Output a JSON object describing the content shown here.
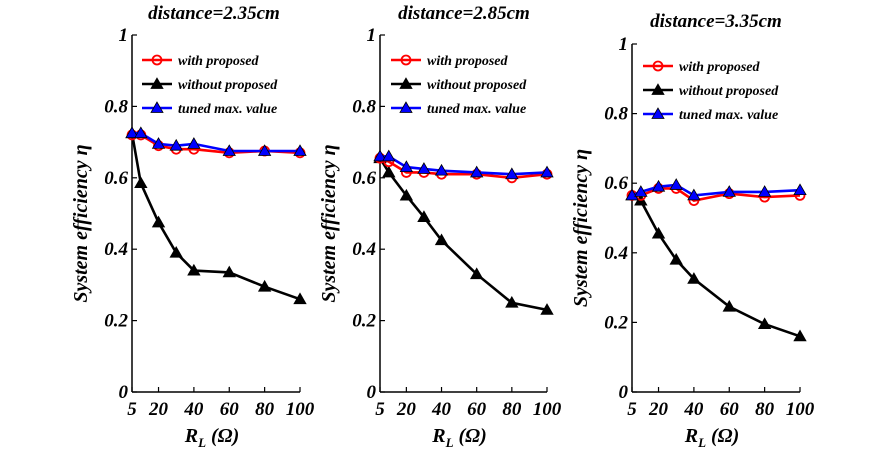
{
  "chart_data": [
    {
      "type": "line",
      "title": "distance=2.35cm",
      "xlabel_main": "R",
      "xlabel_sub": "L",
      "xlabel_unit": " (Ω)",
      "ylabel": "System efficiency η",
      "x": [
        5,
        10,
        20,
        30,
        40,
        60,
        80,
        100
      ],
      "xticks": [
        5,
        20,
        40,
        60,
        80,
        100
      ],
      "yticks": [
        "0",
        "0.2",
        "0.4",
        "0.6",
        "0.8",
        "1"
      ],
      "xlim": [
        5,
        100
      ],
      "ylim": [
        0,
        1
      ],
      "legend_position": "top-right",
      "series": [
        {
          "name": "with proposed",
          "color": "#ff0000",
          "marker": "circle",
          "values": [
            0.72,
            0.72,
            0.69,
            0.68,
            0.68,
            0.67,
            0.675,
            0.67
          ]
        },
        {
          "name": "without proposed",
          "color": "#000000",
          "marker": "triangle",
          "values": [
            0.725,
            0.585,
            0.475,
            0.39,
            0.34,
            0.335,
            0.295,
            0.26
          ]
        },
        {
          "name": "tuned max. value",
          "color": "#0000ff",
          "marker": "triangle",
          "values": [
            0.725,
            0.725,
            0.695,
            0.69,
            0.695,
            0.675,
            0.675,
            0.675
          ]
        }
      ]
    },
    {
      "type": "line",
      "title": "distance=2.85cm",
      "xlabel_main": "R",
      "xlabel_sub": "L",
      "xlabel_unit": " (Ω)",
      "ylabel": "System efficiency η",
      "x": [
        5,
        10,
        20,
        30,
        40,
        60,
        80,
        100
      ],
      "xticks": [
        5,
        20,
        40,
        60,
        80,
        100
      ],
      "yticks": [
        "0",
        "0.2",
        "0.4",
        "0.6",
        "0.8",
        "1"
      ],
      "xlim": [
        5,
        100
      ],
      "ylim": [
        0,
        1
      ],
      "legend_position": "top-right",
      "series": [
        {
          "name": "with proposed",
          "color": "#ff0000",
          "marker": "circle",
          "values": [
            0.655,
            0.645,
            0.615,
            0.615,
            0.61,
            0.61,
            0.6,
            0.61
          ]
        },
        {
          "name": "without proposed",
          "color": "#000000",
          "marker": "triangle",
          "values": [
            0.655,
            0.615,
            0.55,
            0.49,
            0.425,
            0.33,
            0.25,
            0.23
          ]
        },
        {
          "name": "tuned max. value",
          "color": "#0000ff",
          "marker": "triangle",
          "values": [
            0.66,
            0.66,
            0.63,
            0.625,
            0.62,
            0.615,
            0.61,
            0.615
          ]
        }
      ]
    },
    {
      "type": "line",
      "title": "distance=3.35cm",
      "xlabel_main": "R",
      "xlabel_sub": "L",
      "xlabel_unit": " (Ω)",
      "ylabel": "System efficiency η",
      "x": [
        5,
        10,
        20,
        30,
        40,
        60,
        80,
        100
      ],
      "xticks": [
        5,
        20,
        40,
        60,
        80,
        100
      ],
      "yticks": [
        "0",
        "0.2",
        "0.4",
        "0.6",
        "0.8",
        "1"
      ],
      "xlim": [
        5,
        100
      ],
      "ylim": [
        0,
        1
      ],
      "legend_position": "top-right",
      "series": [
        {
          "name": "with proposed",
          "color": "#ff0000",
          "marker": "circle",
          "values": [
            0.565,
            0.565,
            0.585,
            0.585,
            0.55,
            0.57,
            0.56,
            0.565
          ]
        },
        {
          "name": "without proposed",
          "color": "#000000",
          "marker": "triangle",
          "values": [
            0.565,
            0.55,
            0.455,
            0.38,
            0.325,
            0.245,
            0.195,
            0.16
          ]
        },
        {
          "name": "tuned max. value",
          "color": "#0000ff",
          "marker": "triangle",
          "values": [
            0.565,
            0.575,
            0.59,
            0.595,
            0.565,
            0.575,
            0.575,
            0.58
          ]
        }
      ]
    }
  ]
}
